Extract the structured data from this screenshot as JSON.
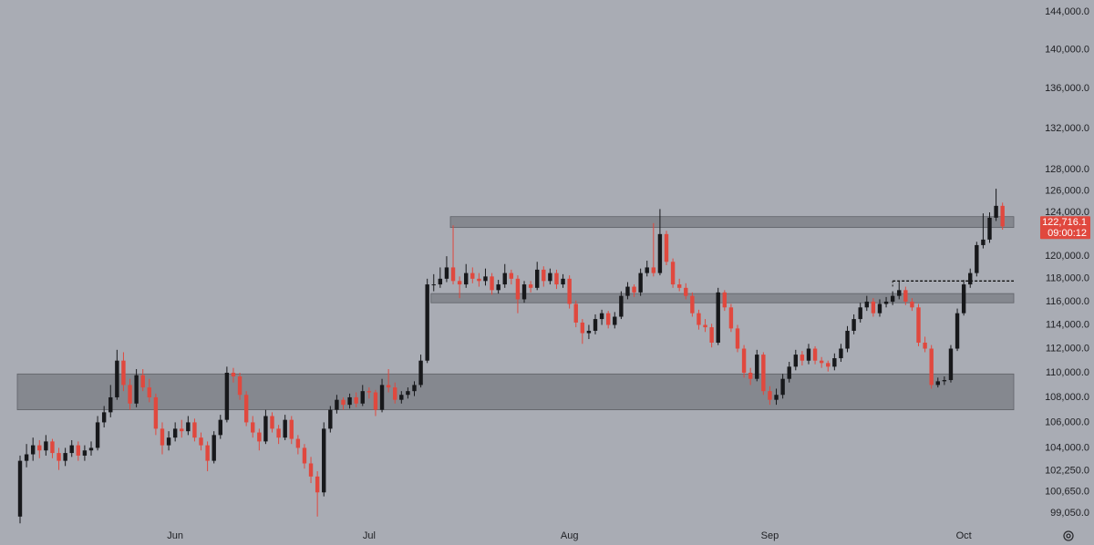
{
  "chart_data": {
    "type": "candlestick",
    "log_scale": true,
    "ylim": [
      98250,
      145300
    ],
    "yticks": [
      {
        "value": 99050,
        "label": "99,050.0"
      },
      {
        "value": 100650,
        "label": "100,650.0"
      },
      {
        "value": 102250,
        "label": "102,250.0"
      },
      {
        "value": 104000,
        "label": "104,000.0"
      },
      {
        "value": 106000,
        "label": "106,000.0"
      },
      {
        "value": 108000,
        "label": "108,000.0"
      },
      {
        "value": 110000,
        "label": "110,000.0"
      },
      {
        "value": 112000,
        "label": "112,000.0"
      },
      {
        "value": 114000,
        "label": "114,000.0"
      },
      {
        "value": 116000,
        "label": "116,000.0"
      },
      {
        "value": 118000,
        "label": "118,000.0"
      },
      {
        "value": 120000,
        "label": "120,000.0"
      },
      {
        "value": 124000,
        "label": "124,000.0"
      },
      {
        "value": 126000,
        "label": "126,000.0"
      },
      {
        "value": 128000,
        "label": "128,000.0"
      },
      {
        "value": 132000,
        "label": "132,000.0"
      },
      {
        "value": 136000,
        "label": "136,000.0"
      },
      {
        "value": 140000,
        "label": "140,000.0"
      },
      {
        "value": 144000,
        "label": "144,000.0"
      }
    ],
    "xticks": [
      {
        "value": 24,
        "label": "Jun"
      },
      {
        "value": 54,
        "label": "Jul"
      },
      {
        "value": 85,
        "label": "Aug"
      },
      {
        "value": 116,
        "label": "Sep"
      },
      {
        "value": 146,
        "label": "Oct"
      }
    ],
    "up_color": "#17181b",
    "down_color": "#e0483e",
    "zone_color": "#7c7f86",
    "last_price": {
      "value": 122716.1,
      "label": "122,716.1"
    },
    "countdown": "09:00:12",
    "zones": [
      {
        "low": 107000,
        "high": 109900,
        "start": 0
      },
      {
        "low": 122600,
        "high": 123600,
        "start": 67
      },
      {
        "low": 115900,
        "high": 116700,
        "start": 64
      }
    ],
    "dotted_line": {
      "value": 117800,
      "start": 135
    },
    "ohlc": [
      [
        98800,
        103400,
        98300,
        103000
      ],
      [
        103000,
        104300,
        102500,
        103500
      ],
      [
        103500,
        104800,
        103000,
        104200
      ],
      [
        104200,
        104600,
        103200,
        103800
      ],
      [
        103800,
        105000,
        103400,
        104500
      ],
      [
        104500,
        104700,
        103200,
        103600
      ],
      [
        103600,
        104000,
        102300,
        103000
      ],
      [
        103000,
        104000,
        102600,
        103600
      ],
      [
        103600,
        104600,
        103300,
        104200
      ],
      [
        104200,
        104500,
        103000,
        103400
      ],
      [
        103400,
        104200,
        103000,
        103800
      ],
      [
        103800,
        104500,
        103400,
        104000
      ],
      [
        104000,
        106500,
        103800,
        106000
      ],
      [
        106000,
        107300,
        105600,
        106800
      ],
      [
        106800,
        109000,
        106400,
        108000
      ],
      [
        108000,
        111900,
        107800,
        111000
      ],
      [
        111000,
        111700,
        108500,
        109000
      ],
      [
        109000,
        109500,
        107000,
        107500
      ],
      [
        107500,
        110300,
        107200,
        109800
      ],
      [
        109800,
        110300,
        108500,
        108800
      ],
      [
        108800,
        109500,
        107600,
        108000
      ],
      [
        108000,
        108300,
        105000,
        105500
      ],
      [
        105500,
        106000,
        103500,
        104200
      ],
      [
        104200,
        105300,
        103800,
        104800
      ],
      [
        104800,
        106000,
        104500,
        105500
      ],
      [
        105500,
        106200,
        104800,
        105300
      ],
      [
        105300,
        106500,
        105000,
        106000
      ],
      [
        106000,
        106300,
        104500,
        104800
      ],
      [
        104800,
        105200,
        103800,
        104200
      ],
      [
        104200,
        104500,
        102200,
        103000
      ],
      [
        103000,
        105300,
        102800,
        105000
      ],
      [
        105000,
        106600,
        104700,
        106200
      ],
      [
        106200,
        110500,
        106000,
        110000
      ],
      [
        110000,
        110400,
        109200,
        109700
      ],
      [
        109700,
        110000,
        107800,
        108200
      ],
      [
        108200,
        108500,
        105700,
        106000
      ],
      [
        106000,
        106500,
        104800,
        105200
      ],
      [
        105200,
        105500,
        103800,
        104500
      ],
      [
        104500,
        107000,
        104300,
        106500
      ],
      [
        106500,
        106800,
        105200,
        105500
      ],
      [
        105500,
        105800,
        104300,
        104800
      ],
      [
        104800,
        106600,
        104600,
        106200
      ],
      [
        106200,
        106500,
        104300,
        104700
      ],
      [
        104700,
        105000,
        103500,
        104000
      ],
      [
        104000,
        104300,
        102400,
        102800
      ],
      [
        102800,
        103300,
        101300,
        101800
      ],
      [
        101800,
        102200,
        98800,
        100600
      ],
      [
        100600,
        106000,
        100300,
        105500
      ],
      [
        105500,
        107300,
        105200,
        107000
      ],
      [
        107000,
        108200,
        106700,
        107800
      ],
      [
        107800,
        108000,
        107000,
        107400
      ],
      [
        107400,
        108300,
        107100,
        108000
      ],
      [
        108000,
        108400,
        107200,
        107500
      ],
      [
        107500,
        109000,
        107300,
        108500
      ],
      [
        108500,
        108800,
        107900,
        108400
      ],
      [
        108400,
        108600,
        106500,
        107000
      ],
      [
        107000,
        109500,
        106800,
        109000
      ],
      [
        109000,
        110300,
        108400,
        108800
      ],
      [
        108800,
        109200,
        107500,
        107800
      ],
      [
        107800,
        108500,
        107500,
        108200
      ],
      [
        108200,
        108800,
        107900,
        108500
      ],
      [
        108500,
        109300,
        108100,
        109000
      ],
      [
        109000,
        111500,
        108800,
        111000
      ],
      [
        111000,
        118000,
        110800,
        117500
      ],
      [
        117500,
        118400,
        116900,
        117500
      ],
      [
        117500,
        119000,
        117200,
        118000
      ],
      [
        118000,
        120000,
        117700,
        119000
      ],
      [
        119000,
        122800,
        117500,
        117800
      ],
      [
        117800,
        118200,
        116300,
        117500
      ],
      [
        117500,
        119300,
        117200,
        118500
      ],
      [
        118500,
        119000,
        117600,
        118000
      ],
      [
        118000,
        118500,
        117300,
        117800
      ],
      [
        117800,
        118900,
        117400,
        118200
      ],
      [
        118200,
        118500,
        116600,
        117000
      ],
      [
        117000,
        117900,
        116700,
        117500
      ],
      [
        117500,
        119300,
        117200,
        118500
      ],
      [
        118500,
        118800,
        117500,
        118000
      ],
      [
        118000,
        118300,
        115000,
        116200
      ],
      [
        116200,
        117800,
        115900,
        117500
      ],
      [
        117500,
        117800,
        116800,
        117200
      ],
      [
        117200,
        119500,
        117000,
        118800
      ],
      [
        118800,
        119100,
        117300,
        117800
      ],
      [
        117800,
        118900,
        117500,
        118500
      ],
      [
        118500,
        118800,
        117100,
        117500
      ],
      [
        117500,
        118400,
        117200,
        118000
      ],
      [
        118000,
        118300,
        115400,
        115800
      ],
      [
        115800,
        116100,
        113800,
        114200
      ],
      [
        114200,
        114500,
        112400,
        113300
      ],
      [
        113300,
        114000,
        112800,
        113500
      ],
      [
        113500,
        114900,
        113200,
        114500
      ],
      [
        114500,
        115300,
        114000,
        115000
      ],
      [
        115000,
        115200,
        113700,
        114000
      ],
      [
        114000,
        115100,
        113700,
        114700
      ],
      [
        114700,
        116900,
        114500,
        116500
      ],
      [
        116500,
        117700,
        116200,
        117300
      ],
      [
        117300,
        117500,
        116400,
        116800
      ],
      [
        116800,
        118900,
        116500,
        118500
      ],
      [
        118500,
        119600,
        118200,
        119000
      ],
      [
        119000,
        123000,
        118200,
        118500
      ],
      [
        118500,
        124300,
        118300,
        122000
      ],
      [
        122000,
        122300,
        119200,
        119500
      ],
      [
        119500,
        119800,
        117200,
        117500
      ],
      [
        117500,
        118000,
        116900,
        117200
      ],
      [
        117200,
        117600,
        116200,
        116500
      ],
      [
        116500,
        116800,
        114700,
        115000
      ],
      [
        115000,
        115300,
        113600,
        114000
      ],
      [
        114000,
        114500,
        113400,
        113800
      ],
      [
        113800,
        114100,
        112100,
        112500
      ],
      [
        112500,
        117200,
        112300,
        116800
      ],
      [
        116800,
        117000,
        115200,
        115500
      ],
      [
        115500,
        115800,
        113400,
        113700
      ],
      [
        113700,
        114000,
        111700,
        112000
      ],
      [
        112000,
        112300,
        109600,
        110000
      ],
      [
        110000,
        110400,
        109000,
        109500
      ],
      [
        109500,
        111900,
        109300,
        111500
      ],
      [
        111500,
        111700,
        108200,
        108500
      ],
      [
        108500,
        108900,
        107400,
        107800
      ],
      [
        107800,
        108700,
        107400,
        108200
      ],
      [
        108200,
        109900,
        107900,
        109500
      ],
      [
        109500,
        110900,
        109200,
        110500
      ],
      [
        110500,
        111900,
        110200,
        111500
      ],
      [
        111500,
        111800,
        110600,
        111000
      ],
      [
        111000,
        112400,
        110700,
        112000
      ],
      [
        112000,
        112200,
        110700,
        111000
      ],
      [
        111000,
        111300,
        110400,
        110800
      ],
      [
        110800,
        111000,
        110100,
        110500
      ],
      [
        110500,
        111600,
        110200,
        111200
      ],
      [
        111200,
        112400,
        110900,
        112000
      ],
      [
        112000,
        113900,
        111700,
        113500
      ],
      [
        113500,
        114900,
        113200,
        114500
      ],
      [
        114500,
        115900,
        114200,
        115500
      ],
      [
        115500,
        116500,
        115200,
        116000
      ],
      [
        116000,
        116300,
        114700,
        115000
      ],
      [
        115000,
        116200,
        114700,
        115800
      ],
      [
        115800,
        116400,
        115500,
        116000
      ],
      [
        116000,
        116900,
        115700,
        116500
      ],
      [
        116500,
        117800,
        116200,
        117000
      ],
      [
        117000,
        117300,
        115700,
        116000
      ],
      [
        116000,
        116300,
        115200,
        115500
      ],
      [
        115500,
        115800,
        112200,
        112500
      ],
      [
        112500,
        113000,
        111700,
        112000
      ],
      [
        112000,
        112300,
        108700,
        109000
      ],
      [
        109000,
        109600,
        108800,
        109300
      ],
      [
        109300,
        109700,
        109000,
        109400
      ],
      [
        109400,
        112300,
        109200,
        112000
      ],
      [
        112000,
        115400,
        111800,
        115000
      ],
      [
        115000,
        117900,
        114800,
        117500
      ],
      [
        117500,
        118900,
        117200,
        118500
      ],
      [
        118500,
        121300,
        118200,
        121000
      ],
      [
        121000,
        123900,
        120700,
        121500
      ],
      [
        121500,
        124000,
        121200,
        123500
      ],
      [
        123500,
        126200,
        123200,
        124600
      ],
      [
        124600,
        124900,
        122400,
        122700
      ]
    ]
  }
}
